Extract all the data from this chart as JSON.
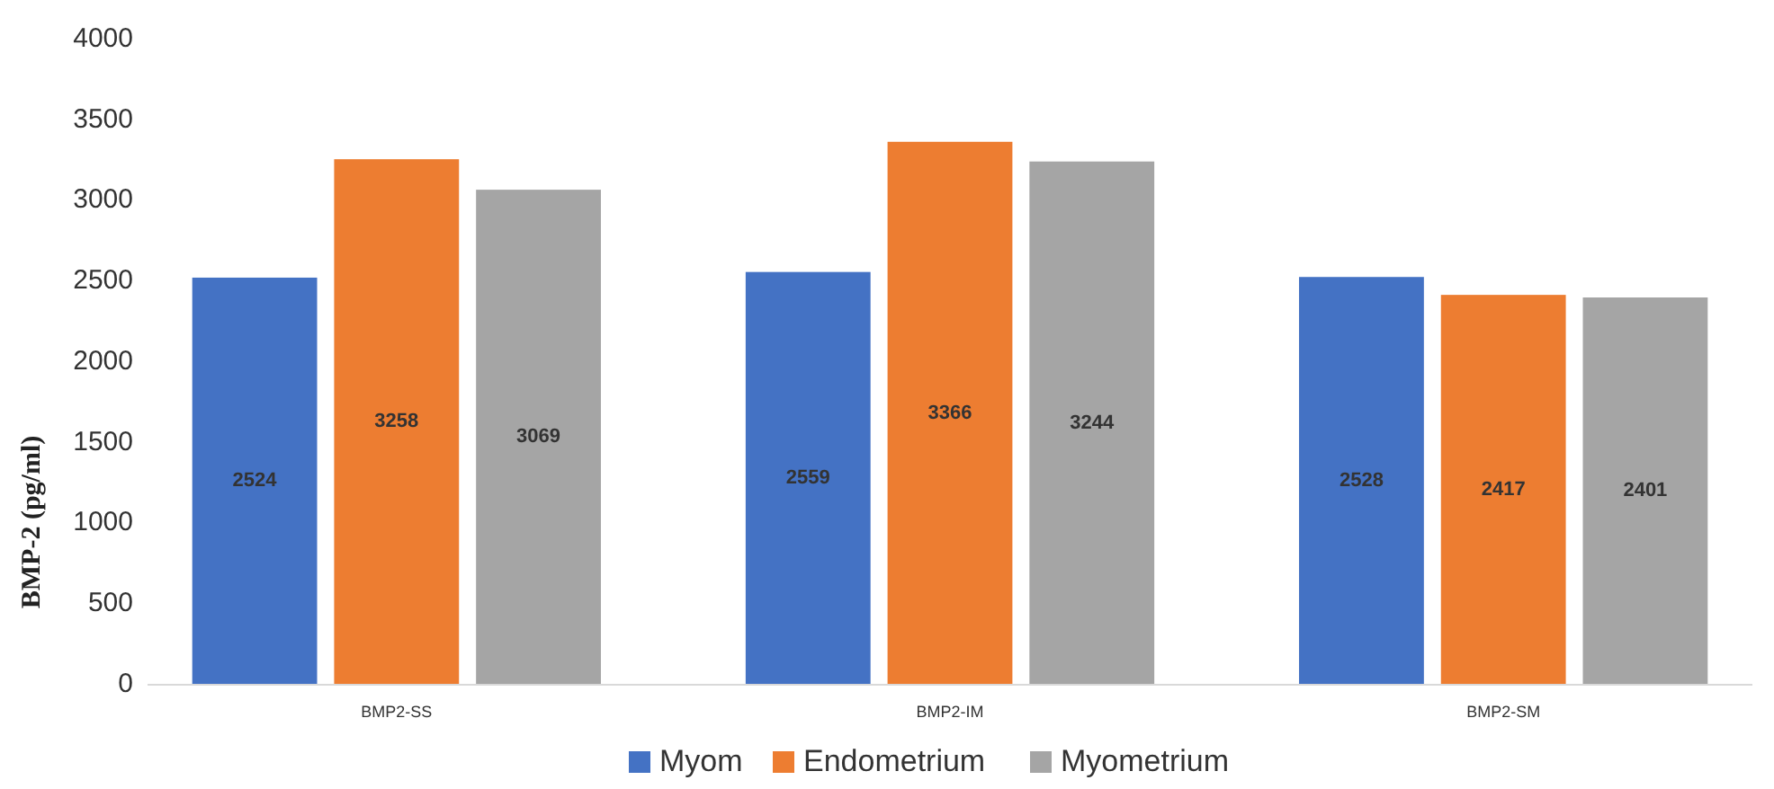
{
  "chart_data": {
    "type": "bar",
    "ylabel": "BMP-2 (pg/ml)",
    "categories": [
      "BMP2-SS",
      "BMP2-IM",
      "BMP2-SM"
    ],
    "series": [
      {
        "name": "Myom",
        "color": "#4472c4",
        "values": [
          2524,
          2559,
          2528
        ]
      },
      {
        "name": "Endometrium",
        "color": "#ed7d31",
        "values": [
          3258,
          3366,
          2417
        ]
      },
      {
        "name": "Myometrium",
        "color": "#a5a5a5",
        "values": [
          3069,
          3244,
          2401
        ]
      }
    ],
    "ylim": [
      0,
      4000
    ],
    "yticks": [
      0,
      500,
      1000,
      1500,
      2000,
      2500,
      3000,
      3500,
      4000
    ],
    "data_labels": true,
    "legend": "bottom",
    "grid": false
  }
}
